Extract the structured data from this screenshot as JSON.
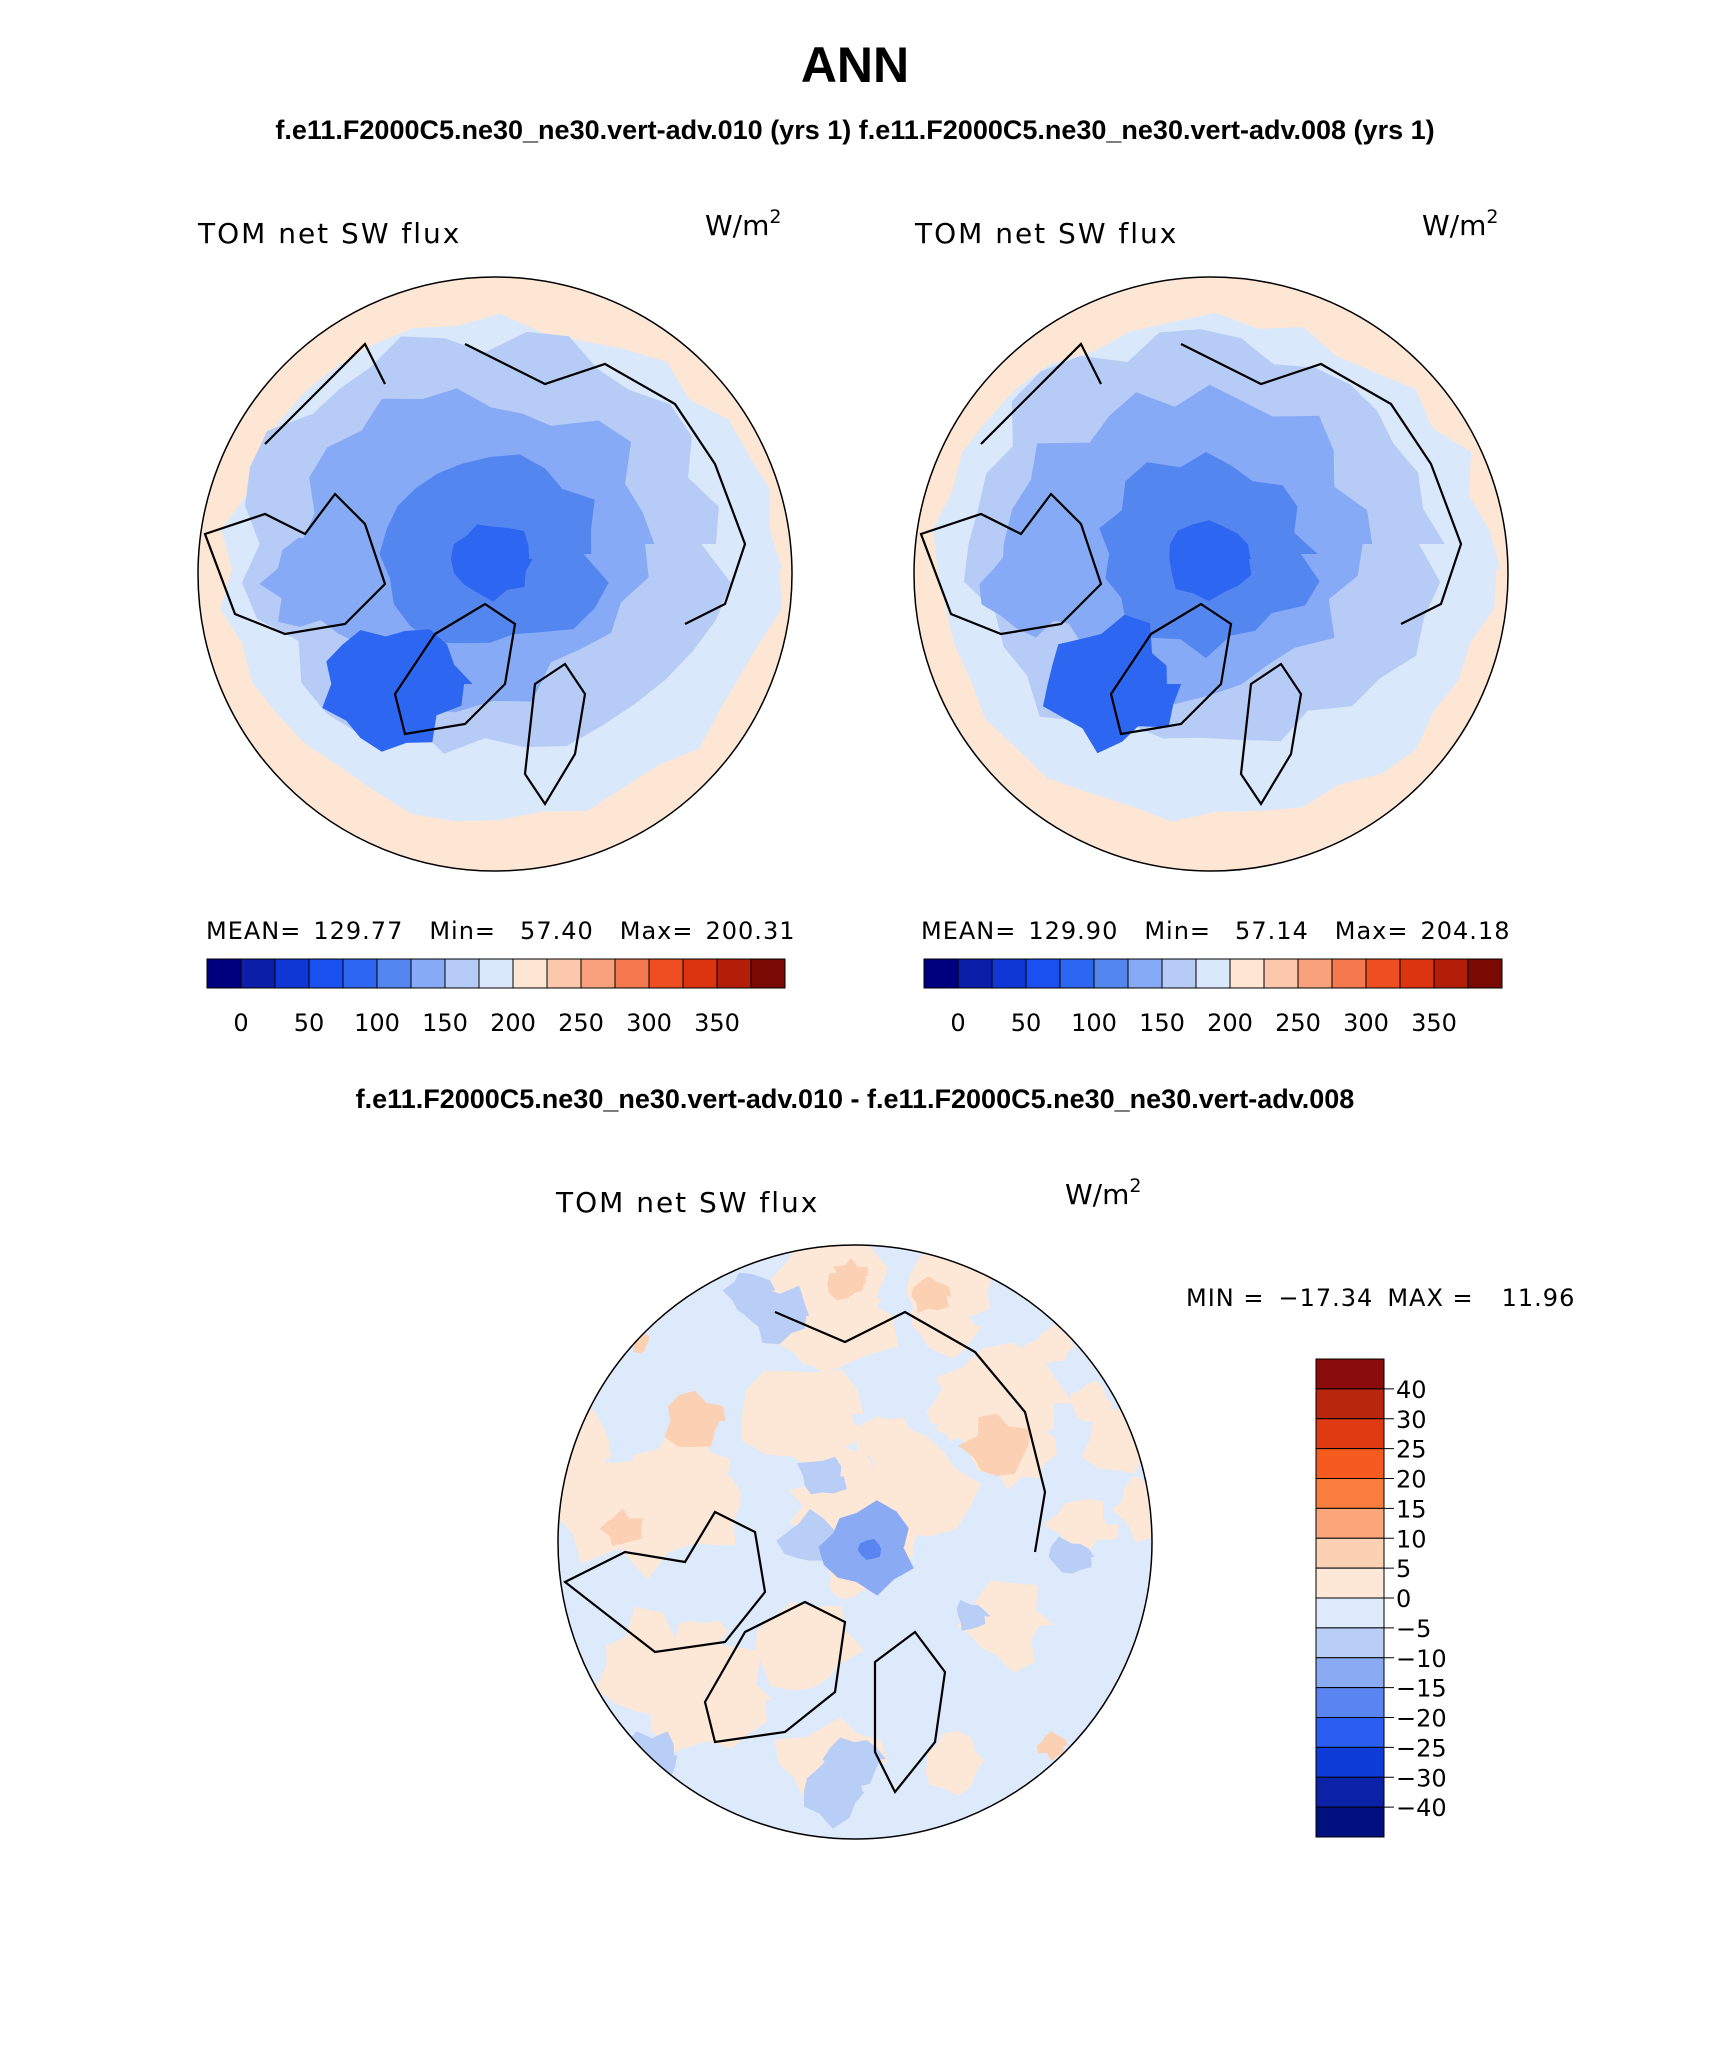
{
  "title": "ANN",
  "subtitle": "f.e11.F2000C5.ne30_ne30.vert-adv.010 (yrs 1) f.e11.F2000C5.ne30_ne30.vert-adv.008 (yrs 1)",
  "diff_title": "f.e11.F2000C5.ne30_ne30.vert-adv.010 - f.e11.F2000C5.ne30_ne30.vert-adv.008",
  "chart_data": [
    {
      "type": "heatmap",
      "projection": "north polar stereographic",
      "variable": "TOM net SW flux",
      "units": "W/m",
      "units_exp": "2",
      "stats": {
        "mean": "129.77",
        "min": "57.40",
        "max": "200.31"
      },
      "stats_text": {
        "mean_label": "MEAN=",
        "min_label": "Min=",
        "max_label": "Max="
      },
      "colorbar": {
        "orientation": "horizontal",
        "levels": [
          0,
          25,
          50,
          75,
          100,
          125,
          150,
          175,
          200,
          225,
          250,
          275,
          300,
          325,
          350
        ],
        "tick_labels": [
          "0",
          "50",
          "100",
          "150",
          "200",
          "250",
          "300",
          "350"
        ],
        "colors": [
          "#00007f",
          "#0a1ea8",
          "#0f37d6",
          "#1a50f0",
          "#2d66f0",
          "#5486f0",
          "#86aaf5",
          "#b6ccf7",
          "#d9e8fb",
          "#fde6d3",
          "#fcc8ac",
          "#f9a07c",
          "#f5784e",
          "#ef4e22",
          "#dc3310",
          "#b21e08",
          "#7a0a03"
        ]
      }
    },
    {
      "type": "heatmap",
      "projection": "north polar stereographic",
      "variable": "TOM net SW flux",
      "units": "W/m",
      "units_exp": "2",
      "stats": {
        "mean": "129.90",
        "min": "57.14",
        "max": "204.18"
      },
      "stats_text": {
        "mean_label": "MEAN=",
        "min_label": "Min=",
        "max_label": "Max="
      },
      "colorbar": {
        "orientation": "horizontal",
        "levels": [
          0,
          25,
          50,
          75,
          100,
          125,
          150,
          175,
          200,
          225,
          250,
          275,
          300,
          325,
          350
        ],
        "tick_labels": [
          "0",
          "50",
          "100",
          "150",
          "200",
          "250",
          "300",
          "350"
        ],
        "colors": [
          "#00007f",
          "#0a1ea8",
          "#0f37d6",
          "#1a50f0",
          "#2d66f0",
          "#5486f0",
          "#86aaf5",
          "#b6ccf7",
          "#d9e8fb",
          "#fde6d3",
          "#fcc8ac",
          "#f9a07c",
          "#f5784e",
          "#ef4e22",
          "#dc3310",
          "#b21e08",
          "#7a0a03"
        ]
      }
    },
    {
      "type": "heatmap",
      "projection": "north polar stereographic",
      "variable": "TOM net SW flux",
      "units": "W/m",
      "units_exp": "2",
      "minmax": {
        "min_label": "MIN =",
        "min": "−17.34",
        "max_label": "MAX =",
        "max": "11.96"
      },
      "colorbar": {
        "orientation": "vertical",
        "levels": [
          40,
          30,
          25,
          20,
          15,
          10,
          5,
          0,
          -5,
          -10,
          -15,
          -20,
          -25,
          -30,
          -40
        ],
        "tick_labels": [
          "40",
          "30",
          "25",
          "20",
          "15",
          "10",
          "5",
          "0",
          "−5",
          "−10",
          "−15",
          "−20",
          "−25",
          "−30",
          "−40"
        ],
        "colors_top_to_bottom": [
          "#8a0c0c",
          "#b8260e",
          "#e03a12",
          "#f55a1e",
          "#f97e3d",
          "#fba67a",
          "#fcd0b2",
          "#fde8d8",
          "#dceafb",
          "#b8cef7",
          "#8aaaf3",
          "#5a84f0",
          "#2a5ef0",
          "#0d3cd8",
          "#0a21a8",
          "#00107f"
        ]
      }
    }
  ]
}
